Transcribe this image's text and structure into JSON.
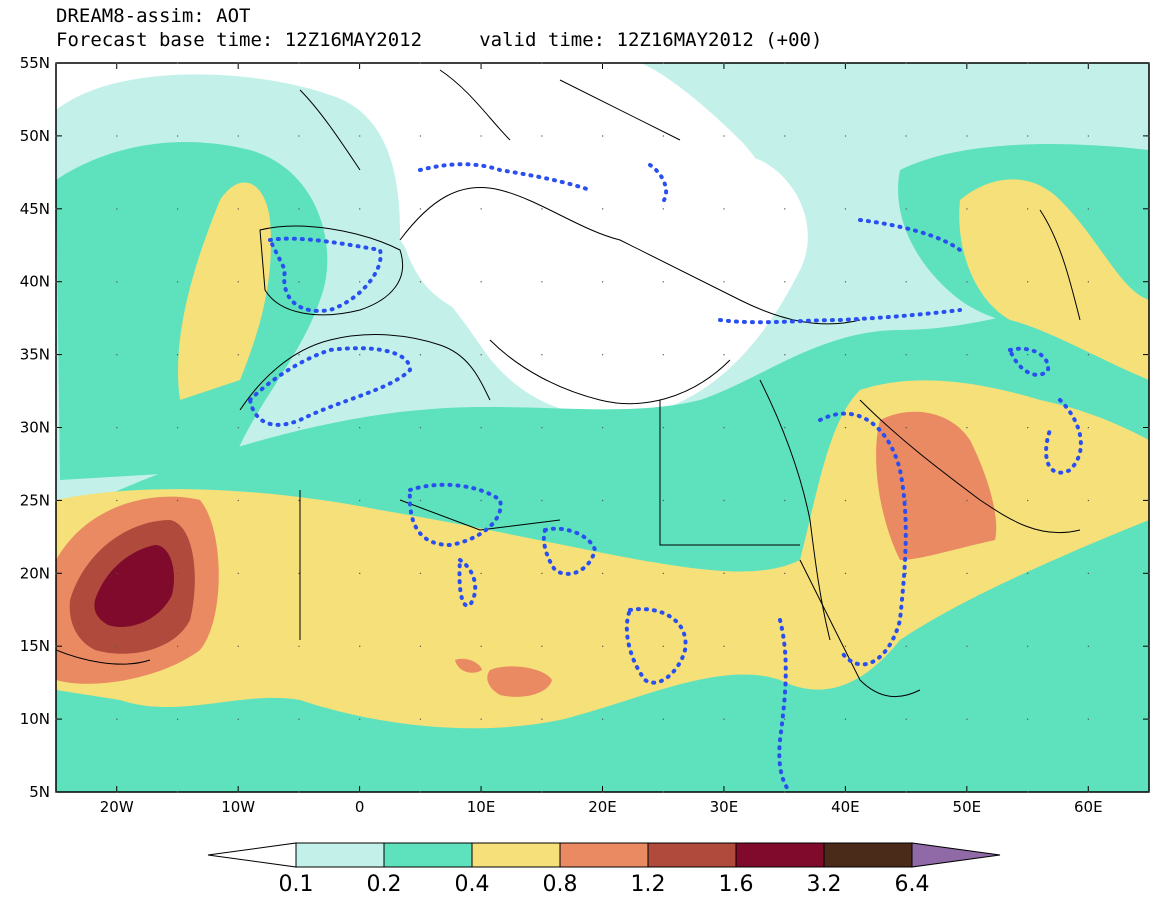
{
  "title_line1": "DREAM8-assim: AOT",
  "title_line2": "Forecast base time: 12Z16MAY2012     valid time: 12Z16MAY2012 (+00)",
  "map": {
    "lon_range": [
      -25,
      65
    ],
    "lat_range": [
      5,
      55
    ],
    "lat_labels": [
      "55N",
      "50N",
      "45N",
      "40N",
      "35N",
      "30N",
      "25N",
      "20N",
      "15N",
      "10N",
      "5N"
    ],
    "lon_labels": [
      "20W",
      "10W",
      "0",
      "10E",
      "20E",
      "30E",
      "40E",
      "50E",
      "60E"
    ]
  },
  "colorbar": {
    "levels": [
      "0.1",
      "0.2",
      "0.4",
      "0.8",
      "1.2",
      "1.6",
      "3.2",
      "6.4"
    ],
    "colors": [
      "#ffffff",
      "#c3f1ea",
      "#5ee2bd",
      "#f5e07a",
      "#ea8a63",
      "#b04a3c",
      "#7f0a2c",
      "#4a2a18",
      "#8f6aa6"
    ]
  },
  "dust_line_color": "#2a4ff0"
}
